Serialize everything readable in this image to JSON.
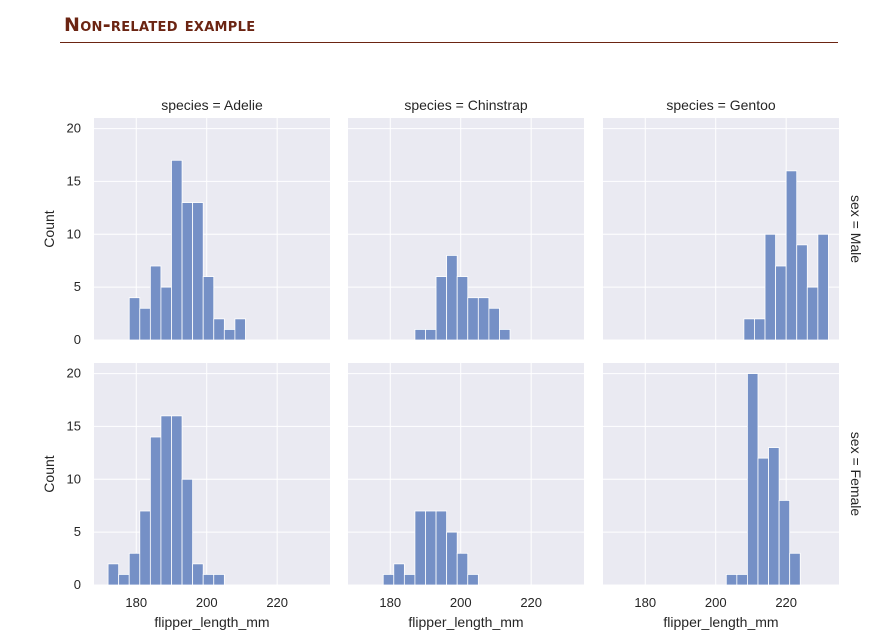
{
  "slide": {
    "heading": "Non-related example",
    "accent_color": "#6b2412"
  },
  "chart_data": {
    "type": "bar",
    "style": "faceted histogram grid (2 rows x 3 columns)",
    "bar_color": "#7590c6",
    "panel_background": "#eaeaf2",
    "grid": true,
    "xlabel": "flipper_length_mm",
    "ylabel": "Count",
    "xlim": [
      168,
      235
    ],
    "ylim": [
      0,
      21
    ],
    "xticks": [
      180,
      200,
      220
    ],
    "yticks": [
      0,
      5,
      10,
      15,
      20
    ],
    "col_titles": [
      "species = Adelie",
      "species = Chinstrap",
      "species = Gentoo"
    ],
    "row_titles": [
      "sex = Male",
      "sex = Female"
    ],
    "bin_width": 3,
    "panels": [
      {
        "row": 0,
        "col": 0,
        "bins_start": 178,
        "counts": [
          4,
          3,
          7,
          5,
          17,
          13,
          13,
          6,
          2,
          1,
          2
        ]
      },
      {
        "row": 0,
        "col": 1,
        "bins_start": 187,
        "counts": [
          1,
          1,
          6,
          8,
          6,
          4,
          4,
          3,
          1
        ]
      },
      {
        "row": 0,
        "col": 2,
        "bins_start": 208,
        "counts": [
          2,
          2,
          10,
          7,
          16,
          9,
          5,
          10
        ]
      },
      {
        "row": 1,
        "col": 0,
        "bins_start": 172,
        "counts": [
          2,
          1,
          3,
          7,
          14,
          16,
          16,
          10,
          2,
          1,
          1
        ]
      },
      {
        "row": 1,
        "col": 1,
        "bins_start": 178,
        "counts": [
          1,
          2,
          1,
          7,
          7,
          7,
          5,
          3,
          1
        ]
      },
      {
        "row": 1,
        "col": 2,
        "bins_start": 203,
        "counts": [
          1,
          1,
          20,
          12,
          13,
          8,
          3
        ]
      }
    ]
  }
}
